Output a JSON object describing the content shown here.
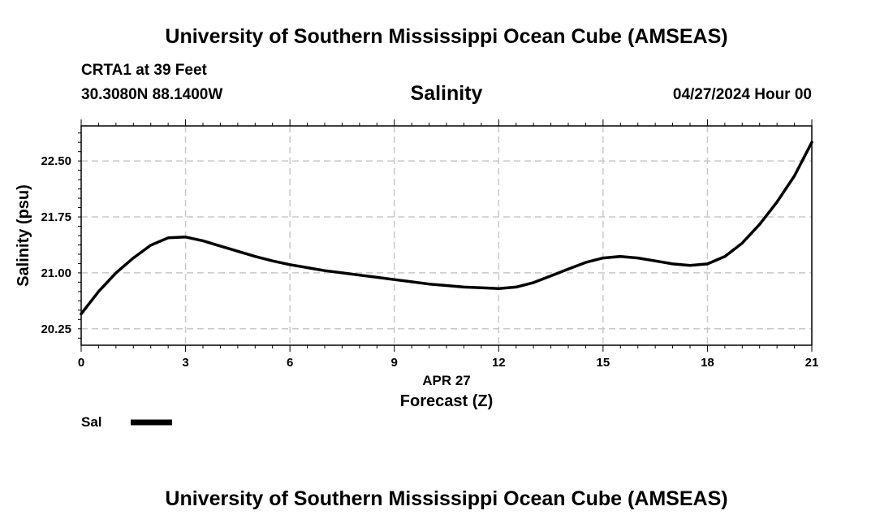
{
  "header": {
    "title": "University of Southern Mississippi Ocean Cube (AMSEAS)",
    "station": "CRTA1 at 39 Feet",
    "location": "30.3080N  88.1400W",
    "datetime": "04/27/2024 Hour 00"
  },
  "footer": {
    "title": "University of Southern Mississippi Ocean Cube (AMSEAS)"
  },
  "legend": {
    "label": "Sal"
  },
  "chart_data": {
    "type": "line",
    "title": "Salinity",
    "xlabel": "Forecast (Z)",
    "xlabel_date": "APR 27",
    "ylabel": "Salinity (psu)",
    "xlim": [
      0,
      21
    ],
    "ylim": [
      20.03,
      22.97
    ],
    "x_ticks": [
      0,
      3,
      6,
      9,
      12,
      15,
      18,
      21
    ],
    "x_tick_labels": [
      "0",
      "3",
      "6",
      "9",
      "12",
      "15",
      "18",
      "21"
    ],
    "y_ticks": [
      20.25,
      21.0,
      21.75,
      22.5
    ],
    "y_tick_labels": [
      "20.25",
      "21.00",
      "21.75",
      "22.50"
    ],
    "grid": true,
    "line_color": "#000000",
    "grid_color": "#c8c8c8",
    "series": [
      {
        "name": "Sal",
        "x": [
          0,
          0.5,
          1,
          1.5,
          2,
          2.5,
          3,
          3.5,
          4,
          4.5,
          5,
          5.5,
          6,
          6.5,
          7,
          7.5,
          8,
          8.5,
          9,
          9.5,
          10,
          10.5,
          11,
          11.5,
          12,
          12.5,
          13,
          13.5,
          14,
          14.5,
          15,
          15.5,
          16,
          16.5,
          17,
          17.5,
          18,
          18.5,
          19,
          19.5,
          20,
          20.5,
          21
        ],
        "values": [
          20.45,
          20.75,
          21.0,
          21.2,
          21.37,
          21.47,
          21.48,
          21.43,
          21.36,
          21.29,
          21.22,
          21.16,
          21.11,
          21.07,
          21.03,
          21.0,
          20.97,
          20.94,
          20.91,
          20.88,
          20.85,
          20.83,
          20.81,
          20.8,
          20.79,
          20.81,
          20.87,
          20.96,
          21.05,
          21.14,
          21.2,
          21.22,
          21.2,
          21.16,
          21.12,
          21.1,
          21.12,
          21.22,
          21.4,
          21.65,
          21.95,
          22.3,
          22.75
        ]
      }
    ]
  }
}
